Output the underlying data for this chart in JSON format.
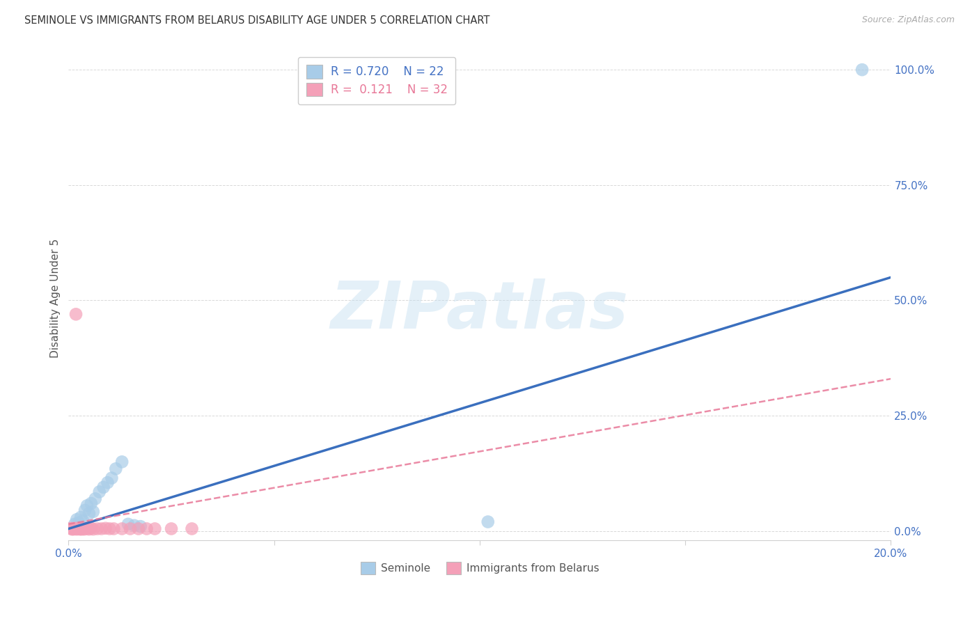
{
  "title": "SEMINOLE VS IMMIGRANTS FROM BELARUS DISABILITY AGE UNDER 5 CORRELATION CHART",
  "source": "Source: ZipAtlas.com",
  "ylabel_label": "Disability Age Under 5",
  "ylabel_ticks": [
    0,
    25,
    50,
    75,
    100
  ],
  "ylabel_tick_labels": [
    "0.0%",
    "25.0%",
    "50.0%",
    "75.0%",
    "100.0%"
  ],
  "xtick_vals": [
    0,
    5,
    10,
    15,
    20
  ],
  "xtick_labels": [
    "0.0%",
    "",
    "",
    "",
    "20.0%"
  ],
  "xmin": 0.0,
  "xmax": 20.0,
  "ymin": -2.0,
  "ymax": 103.0,
  "legend_blue_r": "R = 0.720",
  "legend_blue_n": "N = 22",
  "legend_pink_r": "R =  0.121",
  "legend_pink_n": "N = 32",
  "legend_label_blue": "Seminole",
  "legend_label_pink": "Immigrants from Belarus",
  "blue_scatter_color": "#a8cce8",
  "pink_scatter_color": "#f4a0b8",
  "blue_line_color": "#3a6fbe",
  "pink_line_color": "#e87898",
  "blue_r_color": "#4472c4",
  "pink_r_color": "#e87898",
  "n_color": "#e03060",
  "tick_color": "#4472c4",
  "grid_color": "#d0d0d0",
  "background_color": "#ffffff",
  "blue_reg_x0": 0.0,
  "blue_reg_y0": 0.5,
  "blue_reg_x1": 20.0,
  "blue_reg_y1": 55.0,
  "pink_reg_x0": 0.0,
  "pink_reg_y0": 1.5,
  "pink_reg_x1": 20.0,
  "pink_reg_y1": 33.0,
  "blue_points_x": [
    0.15,
    0.2,
    0.25,
    0.3,
    0.35,
    0.4,
    0.45,
    0.5,
    0.55,
    0.6,
    0.65,
    0.75,
    0.85,
    0.95,
    1.05,
    1.15,
    1.3,
    1.45,
    1.6,
    1.75,
    10.2,
    19.3
  ],
  "blue_points_y": [
    1.5,
    2.5,
    1.8,
    3.0,
    2.2,
    4.5,
    5.5,
    3.8,
    6.0,
    4.2,
    7.0,
    8.5,
    9.5,
    10.5,
    11.5,
    13.5,
    15.0,
    1.5,
    1.2,
    1.0,
    2.0,
    100.0
  ],
  "pink_points_x": [
    0.05,
    0.08,
    0.1,
    0.12,
    0.15,
    0.18,
    0.2,
    0.22,
    0.25,
    0.28,
    0.3,
    0.32,
    0.35,
    0.38,
    0.4,
    0.45,
    0.5,
    0.55,
    0.6,
    0.7,
    0.8,
    0.9,
    1.0,
    1.1,
    1.3,
    1.5,
    1.7,
    1.9,
    2.1,
    2.5,
    3.0,
    0.18
  ],
  "pink_points_y": [
    0.6,
    0.4,
    0.5,
    0.4,
    0.6,
    0.5,
    0.4,
    0.6,
    0.5,
    0.4,
    0.6,
    0.4,
    0.5,
    0.4,
    0.6,
    0.5,
    0.4,
    0.6,
    0.4,
    0.5,
    0.5,
    0.6,
    0.5,
    0.5,
    0.5,
    0.5,
    0.5,
    0.5,
    0.5,
    0.5,
    0.5,
    47.0
  ],
  "title_fontsize": 10.5,
  "source_fontsize": 9,
  "watermark_text": "ZIPatlas",
  "watermark_fontsize": 68
}
